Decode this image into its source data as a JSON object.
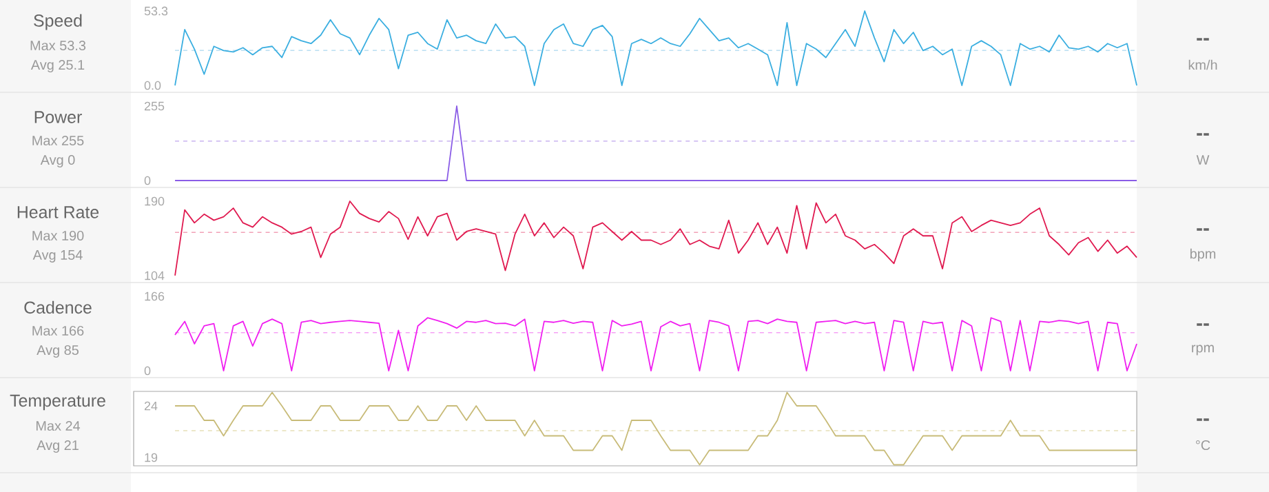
{
  "chart_data": [
    {
      "type": "line",
      "title": "Speed",
      "annotations": [
        "Max 53.3",
        "Avg 25.1",
        "--"
      ],
      "ylabel": "km/h",
      "color": "#3aaee0",
      "ylim": [
        0,
        53.3
      ],
      "yticks": [
        {
          "value": 0,
          "label": "0.0"
        },
        53.3
      ],
      "marker": "none",
      "line_style": "solid",
      "ref_lines": [
        {
          "axis": "y",
          "value": 25.1,
          "color": "#a9d8ef",
          "line_style": "dashed"
        }
      ],
      "categories": [
        null,
        null,
        null,
        null,
        null,
        null,
        null,
        null,
        null,
        null,
        null,
        null,
        null,
        null,
        null,
        null,
        null,
        null,
        null,
        null,
        null,
        null,
        null,
        null,
        null,
        null,
        null,
        null,
        null,
        null,
        null,
        null,
        null,
        null,
        null,
        null,
        null,
        null,
        null,
        null,
        null,
        null,
        null,
        null,
        null,
        null,
        null,
        null,
        null,
        null,
        null,
        null,
        null,
        null,
        null,
        null,
        null,
        null,
        null,
        null,
        null,
        null,
        null,
        null,
        null,
        null,
        null,
        null,
        null,
        null,
        null,
        null,
        null,
        null,
        null,
        null,
        null,
        null,
        null,
        null,
        null,
        null,
        null,
        null,
        null,
        null,
        null,
        null,
        null,
        null,
        null,
        null,
        null,
        null,
        null,
        null,
        null,
        null,
        null,
        null
      ],
      "values": [
        0,
        40,
        26,
        8,
        28,
        25,
        24,
        27,
        22,
        27,
        28,
        20,
        35,
        32,
        30,
        36,
        47,
        37,
        34,
        22,
        36,
        48,
        40,
        12,
        36,
        38,
        30,
        26,
        47,
        34,
        36,
        32,
        30,
        44,
        34,
        35,
        28,
        0,
        30,
        40,
        44,
        30,
        28,
        40,
        43,
        35,
        0,
        30,
        33,
        30,
        34,
        30,
        28,
        37,
        48,
        40,
        32,
        34,
        27,
        30,
        26,
        22,
        0,
        45,
        0,
        30,
        26,
        20,
        30,
        40,
        28,
        53.3,
        34,
        17,
        40,
        30,
        38,
        25,
        28,
        22,
        26,
        0,
        28,
        32,
        28,
        22,
        0,
        30,
        26,
        28,
        24,
        36,
        27,
        26,
        28,
        24,
        30,
        27,
        30,
        0
      ]
    },
    {
      "type": "line",
      "title": "Power",
      "annotations": [
        "Max 255",
        "Avg 0",
        "--"
      ],
      "ylabel": "W",
      "color": "#8a5ce6",
      "ylim": [
        0,
        255
      ],
      "yticks": [
        0,
        255
      ],
      "marker": "none",
      "line_style": "solid",
      "ref_lines": [
        {
          "axis": "y",
          "value": 135,
          "color": "#c9b3f0",
          "line_style": "dashed"
        }
      ],
      "categories": [
        null,
        null,
        null,
        null,
        null,
        null,
        null,
        null,
        null,
        null,
        null,
        null,
        null,
        null,
        null,
        null,
        null,
        null,
        null,
        null,
        null,
        null,
        null,
        null,
        null,
        null,
        null,
        null,
        null,
        null,
        null,
        null,
        null,
        null,
        null,
        null,
        null,
        null,
        null,
        null,
        null,
        null,
        null,
        null,
        null,
        null,
        null,
        null,
        null,
        null,
        null,
        null,
        null,
        null,
        null,
        null,
        null,
        null,
        null,
        null,
        null,
        null,
        null,
        null,
        null,
        null,
        null,
        null,
        null,
        null,
        null,
        null,
        null,
        null,
        null,
        null,
        null,
        null,
        null,
        null,
        null,
        null,
        null,
        null,
        null,
        null,
        null,
        null,
        null,
        null,
        null,
        null,
        null,
        null,
        null,
        null,
        null,
        null,
        null,
        null
      ],
      "values": [
        0,
        0,
        0,
        0,
        0,
        0,
        0,
        0,
        0,
        0,
        0,
        0,
        0,
        0,
        0,
        0,
        0,
        0,
        0,
        0,
        0,
        0,
        0,
        0,
        0,
        0,
        0,
        0,
        0,
        255,
        0,
        0,
        0,
        0,
        0,
        0,
        0,
        0,
        0,
        0,
        0,
        0,
        0,
        0,
        0,
        0,
        0,
        0,
        0,
        0,
        0,
        0,
        0,
        0,
        0,
        0,
        0,
        0,
        0,
        0,
        0,
        0,
        0,
        0,
        0,
        0,
        0,
        0,
        0,
        0,
        0,
        0,
        0,
        0,
        0,
        0,
        0,
        0,
        0,
        0,
        0,
        0,
        0,
        0,
        0,
        0,
        0,
        0,
        0,
        0,
        0,
        0,
        0,
        0,
        0,
        0,
        0,
        0,
        0,
        0
      ]
    },
    {
      "type": "line",
      "title": "Heart Rate",
      "annotations": [
        "Max 190",
        "Avg 154",
        "--"
      ],
      "ylabel": "bpm",
      "color": "#e0194f",
      "ylim": [
        104,
        190
      ],
      "yticks": [
        104,
        190
      ],
      "marker": "none",
      "line_style": "solid",
      "ref_lines": [
        {
          "axis": "y",
          "value": 154,
          "color": "#f2a0b6",
          "line_style": "dashed"
        }
      ],
      "categories": [
        null,
        null,
        null,
        null,
        null,
        null,
        null,
        null,
        null,
        null,
        null,
        null,
        null,
        null,
        null,
        null,
        null,
        null,
        null,
        null,
        null,
        null,
        null,
        null,
        null,
        null,
        null,
        null,
        null,
        null,
        null,
        null,
        null,
        null,
        null,
        null,
        null,
        null,
        null,
        null,
        null,
        null,
        null,
        null,
        null,
        null,
        null,
        null,
        null,
        null,
        null,
        null,
        null,
        null,
        null,
        null,
        null,
        null,
        null,
        null,
        null,
        null,
        null,
        null,
        null,
        null,
        null,
        null,
        null,
        null,
        null,
        null,
        null,
        null,
        null,
        null,
        null,
        null,
        null,
        null,
        null,
        null,
        null,
        null,
        null,
        null,
        null,
        null,
        null,
        null,
        null,
        null,
        null,
        null,
        null,
        null,
        null,
        null,
        null,
        null
      ],
      "values": [
        104,
        180,
        165,
        175,
        168,
        172,
        182,
        165,
        160,
        172,
        165,
        160,
        152,
        155,
        160,
        125,
        152,
        160,
        190,
        176,
        170,
        166,
        178,
        170,
        146,
        172,
        150,
        172,
        176,
        145,
        155,
        158,
        155,
        152,
        110,
        152,
        175,
        150,
        165,
        148,
        160,
        150,
        112,
        160,
        165,
        155,
        145,
        155,
        145,
        145,
        140,
        145,
        158,
        140,
        145,
        138,
        135,
        168,
        130,
        145,
        165,
        140,
        160,
        130,
        185,
        135,
        188,
        165,
        175,
        150,
        145,
        135,
        140,
        130,
        118,
        150,
        158,
        150,
        150,
        112,
        165,
        172,
        155,
        162,
        168,
        165,
        162,
        165,
        175,
        182,
        150,
        140,
        128,
        142,
        148,
        132,
        145,
        130,
        138,
        125
      ]
    },
    {
      "type": "line",
      "title": "Cadence",
      "annotations": [
        "Max 166",
        "Avg 85",
        "--"
      ],
      "ylabel": "rpm",
      "color": "#f01ff0",
      "ylim": [
        0,
        166
      ],
      "yticks": [
        0,
        166
      ],
      "marker": "none",
      "line_style": "solid",
      "ref_lines": [
        {
          "axis": "y",
          "value": 85,
          "color": "#f5a0f5",
          "line_style": "dashed"
        }
      ],
      "categories": [
        null,
        null,
        null,
        null,
        null,
        null,
        null,
        null,
        null,
        null,
        null,
        null,
        null,
        null,
        null,
        null,
        null,
        null,
        null,
        null,
        null,
        null,
        null,
        null,
        null,
        null,
        null,
        null,
        null,
        null,
        null,
        null,
        null,
        null,
        null,
        null,
        null,
        null,
        null,
        null,
        null,
        null,
        null,
        null,
        null,
        null,
        null,
        null,
        null,
        null,
        null,
        null,
        null,
        null,
        null,
        null,
        null,
        null,
        null,
        null,
        null,
        null,
        null,
        null,
        null,
        null,
        null,
        null,
        null,
        null,
        null,
        null,
        null,
        null,
        null,
        null,
        null,
        null,
        null,
        null,
        null,
        null,
        null,
        null,
        null,
        null,
        null,
        null,
        null,
        null,
        null,
        null,
        null,
        null,
        null,
        null,
        null,
        null,
        null,
        null
      ],
      "values": [
        80,
        110,
        60,
        100,
        105,
        0,
        100,
        110,
        55,
        105,
        115,
        105,
        0,
        108,
        112,
        105,
        108,
        110,
        112,
        110,
        108,
        106,
        0,
        90,
        0,
        100,
        118,
        112,
        105,
        95,
        110,
        108,
        112,
        105,
        106,
        100,
        115,
        0,
        110,
        108,
        112,
        106,
        110,
        108,
        0,
        112,
        100,
        104,
        110,
        0,
        98,
        110,
        100,
        105,
        0,
        112,
        108,
        100,
        0,
        110,
        112,
        105,
        115,
        110,
        108,
        0,
        108,
        110,
        112,
        105,
        110,
        105,
        108,
        0,
        112,
        108,
        0,
        110,
        105,
        108,
        0,
        112,
        100,
        0,
        118,
        110,
        0,
        112,
        0,
        110,
        108,
        112,
        110,
        105,
        110,
        0,
        108,
        105,
        0,
        60
      ]
    },
    {
      "type": "line",
      "title": "Temperature",
      "annotations": [
        "Max 24",
        "Avg 21",
        "--"
      ],
      "ylabel": "°C",
      "color": "#c8bb78",
      "ylim": [
        18.2,
        25.4
      ],
      "yticks": [
        19,
        24
      ],
      "marker": "none",
      "line_style": "solid",
      "ref_lines": [
        {
          "axis": "y",
          "value": 21.6,
          "color": "#e6e0b8",
          "line_style": "dashed"
        }
      ],
      "categories": [
        null,
        null,
        null,
        null,
        null,
        null,
        null,
        null,
        null,
        null,
        null,
        null,
        null,
        null,
        null,
        null,
        null,
        null,
        null,
        null,
        null,
        null,
        null,
        null,
        null,
        null,
        null,
        null,
        null,
        null,
        null,
        null,
        null,
        null,
        null,
        null,
        null,
        null,
        null,
        null,
        null,
        null,
        null,
        null,
        null,
        null,
        null,
        null,
        null,
        null,
        null,
        null,
        null,
        null,
        null,
        null,
        null,
        null,
        null,
        null,
        null,
        null,
        null,
        null,
        null,
        null,
        null,
        null,
        null,
        null,
        null,
        null,
        null,
        null,
        null,
        null,
        null,
        null,
        null,
        null,
        null,
        null,
        null,
        null,
        null,
        null,
        null,
        null,
        null,
        null,
        null,
        null,
        null,
        null,
        null,
        null,
        null,
        null,
        null,
        null
      ],
      "values": [
        24,
        24,
        24,
        22.6,
        22.6,
        21.1,
        22.6,
        24,
        24,
        24,
        25.3,
        24,
        22.6,
        22.6,
        22.6,
        24,
        24,
        22.6,
        22.6,
        22.6,
        24,
        24,
        24,
        22.6,
        22.6,
        24,
        22.6,
        22.6,
        24,
        24,
        22.6,
        24,
        22.6,
        22.6,
        22.6,
        22.6,
        21.1,
        22.6,
        21.1,
        21.1,
        21.1,
        19.7,
        19.7,
        19.7,
        21.1,
        21.1,
        19.7,
        22.6,
        22.6,
        22.6,
        21.1,
        19.7,
        19.7,
        19.7,
        18.3,
        19.7,
        19.7,
        19.7,
        19.7,
        19.7,
        21.1,
        21.1,
        22.6,
        25.3,
        24,
        24,
        24,
        22.6,
        21.1,
        21.1,
        21.1,
        21.1,
        19.7,
        19.7,
        18.3,
        18.3,
        19.7,
        21.1,
        21.1,
        21.1,
        19.7,
        21.1,
        21.1,
        21.1,
        21.1,
        21.1,
        22.6,
        21.1,
        21.1,
        21.1,
        19.7,
        19.7,
        19.7,
        19.7,
        19.7,
        19.7,
        19.7,
        19.7,
        19.7,
        19.7
      ]
    }
  ]
}
